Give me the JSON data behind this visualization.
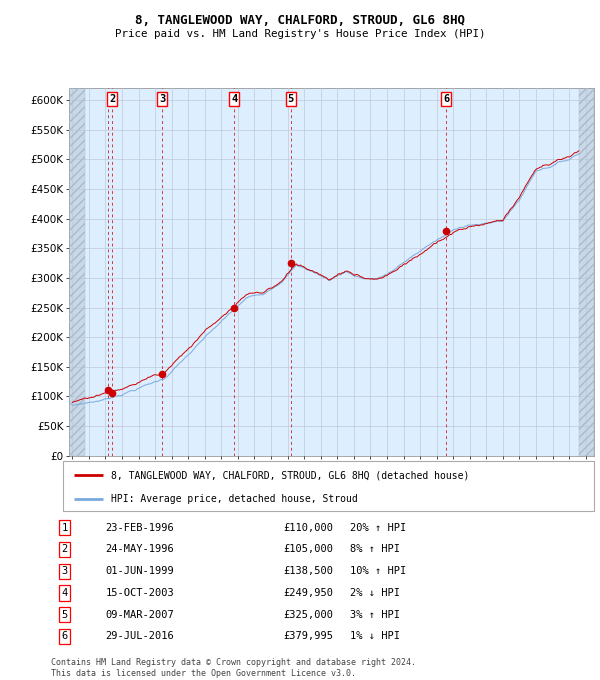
{
  "title": "8, TANGLEWOOD WAY, CHALFORD, STROUD, GL6 8HQ",
  "subtitle": "Price paid vs. HM Land Registry's House Price Index (HPI)",
  "hpi_color": "#7aaadd",
  "price_color": "#cc0000",
  "bg_color": "#ddeeff",
  "grid_color": "#bbccdd",
  "ylim": [
    0,
    620000
  ],
  "yticks": [
    0,
    50000,
    100000,
    150000,
    200000,
    250000,
    300000,
    350000,
    400000,
    450000,
    500000,
    550000,
    600000
  ],
  "ytick_labels": [
    "£0",
    "£50K",
    "£100K",
    "£150K",
    "£200K",
    "£250K",
    "£300K",
    "£350K",
    "£400K",
    "£450K",
    "£500K",
    "£550K",
    "£600K"
  ],
  "xlim_start": 1993.8,
  "xlim_end": 2025.5,
  "hatch_left_end": 1994.75,
  "hatch_right_start": 2024.58,
  "transactions": [
    {
      "num": 1,
      "date": "23-FEB-1996",
      "year": 1996.13,
      "price": 110000,
      "pct": "20%",
      "dir": "↑",
      "show_label": false
    },
    {
      "num": 2,
      "date": "24-MAY-1996",
      "year": 1996.4,
      "price": 105000,
      "pct": "8%",
      "dir": "↑",
      "show_label": true
    },
    {
      "num": 3,
      "date": "01-JUN-1999",
      "year": 1999.42,
      "price": 138500,
      "pct": "10%",
      "dir": "↑",
      "show_label": true
    },
    {
      "num": 4,
      "date": "15-OCT-2003",
      "year": 2003.79,
      "price": 249950,
      "pct": "2%",
      "dir": "↓",
      "show_label": true
    },
    {
      "num": 5,
      "date": "09-MAR-2007",
      "year": 2007.19,
      "price": 325000,
      "pct": "3%",
      "dir": "↑",
      "show_label": true
    },
    {
      "num": 6,
      "date": "29-JUL-2016",
      "year": 2016.58,
      "price": 379995,
      "pct": "1%",
      "dir": "↓",
      "show_label": true
    }
  ],
  "legend_entries": [
    "8, TANGLEWOOD WAY, CHALFORD, STROUD, GL6 8HQ (detached house)",
    "HPI: Average price, detached house, Stroud"
  ],
  "table_rows": [
    [
      "1",
      "23-FEB-1996",
      "£110,000",
      "20% ↑ HPI"
    ],
    [
      "2",
      "24-MAY-1996",
      "£105,000",
      "8% ↑ HPI"
    ],
    [
      "3",
      "01-JUN-1999",
      "£138,500",
      "10% ↑ HPI"
    ],
    [
      "4",
      "15-OCT-2003",
      "£249,950",
      "2% ↓ HPI"
    ],
    [
      "5",
      "09-MAR-2007",
      "£325,000",
      "3% ↑ HPI"
    ],
    [
      "6",
      "29-JUL-2016",
      "£379,995",
      "1% ↓ HPI"
    ]
  ],
  "footer1": "Contains HM Land Registry data © Crown copyright and database right 2024.",
  "footer2": "This data is licensed under the Open Government Licence v3.0."
}
